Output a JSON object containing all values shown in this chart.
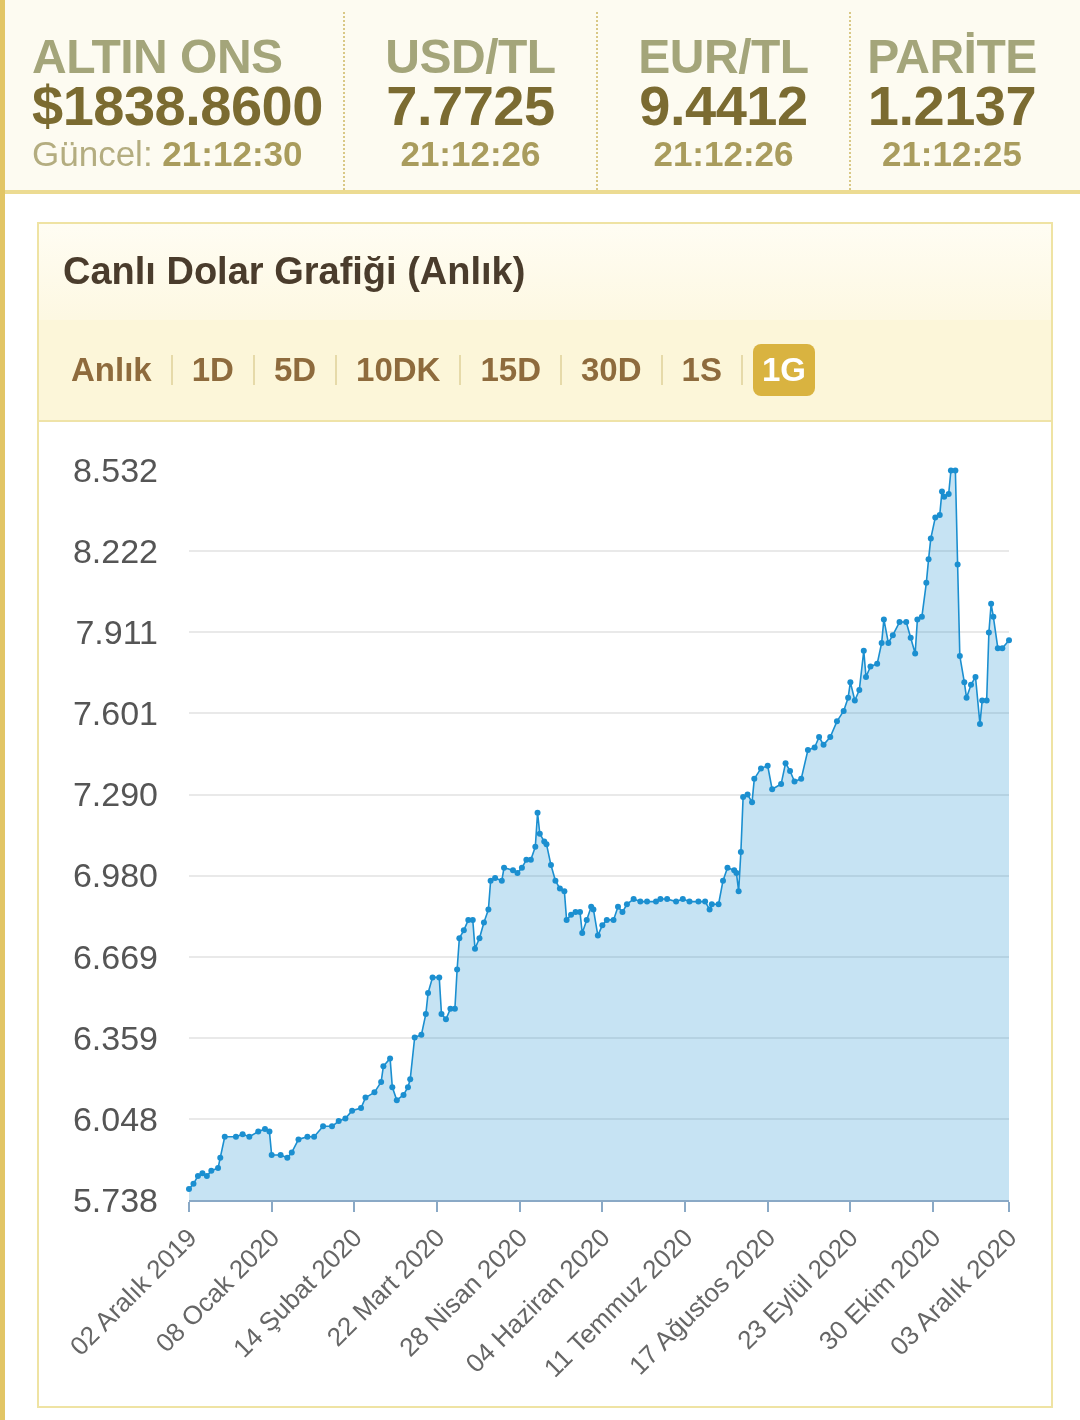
{
  "chart_data": [
    {
      "type": "other",
      "annotations": [
        "ALTIN ONS",
        "$1838.8600",
        "Güncel: 21:12:30",
        "USD/TL",
        "7.7725",
        "21:12:26",
        "EUR/TL",
        "9.4412",
        "21:12:26",
        "PARİTE",
        "1.2137",
        "21:12:25"
      ]
    },
    {
      "type": "area",
      "title": "Canlı Dolar Grafiği (Anlık)",
      "annotations": [
        "Anlık",
        "1D",
        "5D",
        "10DK",
        "15D",
        "30D",
        "1S",
        "1G"
      ],
      "x": [
        "2019-12-02",
        "2019-12-04",
        "2019-12-06",
        "2019-12-08",
        "2019-12-10",
        "2019-12-12",
        "2019-12-15",
        "2019-12-16",
        "2019-12-18",
        "2019-12-23",
        "2019-12-26",
        "2019-12-29",
        "2020-01-02",
        "2020-01-05",
        "2020-01-07",
        "2020-01-08",
        "2020-01-12",
        "2020-01-15",
        "2020-01-17",
        "2020-01-20",
        "2020-01-24",
        "2020-01-27",
        "2020-01-31",
        "2020-02-04",
        "2020-02-07",
        "2020-02-10",
        "2020-02-13",
        "2020-02-17",
        "2020-02-19",
        "2020-02-23",
        "2020-02-26",
        "2020-02-27",
        "2020-03-01",
        "2020-03-02",
        "2020-03-04",
        "2020-03-07",
        "2020-03-09",
        "2020-03-10",
        "2020-03-12",
        "2020-03-15",
        "2020-03-17",
        "2020-03-18",
        "2020-03-20",
        "2020-03-23",
        "2020-03-24",
        "2020-03-26",
        "2020-03-28",
        "2020-03-30",
        "2020-03-31",
        "2020-04-01",
        "2020-04-03",
        "2020-04-05",
        "2020-04-07",
        "2020-04-08",
        "2020-04-10",
        "2020-04-12",
        "2020-04-14",
        "2020-04-15",
        "2020-04-17",
        "2020-04-20",
        "2020-04-21",
        "2020-04-25",
        "2020-04-27",
        "2020-04-29",
        "2020-05-01",
        "2020-05-03",
        "2020-05-05",
        "2020-05-06",
        "2020-05-07",
        "2020-05-09",
        "2020-05-10",
        "2020-05-12",
        "2020-05-14",
        "2020-05-16",
        "2020-05-18",
        "2020-05-19",
        "2020-05-21",
        "2020-05-23",
        "2020-05-25",
        "2020-05-26",
        "2020-05-28",
        "2020-05-30",
        "2020-05-31",
        "2020-06-02",
        "2020-06-04",
        "2020-06-06",
        "2020-06-09",
        "2020-06-11",
        "2020-06-13",
        "2020-06-15",
        "2020-06-18",
        "2020-06-21",
        "2020-06-24",
        "2020-06-28",
        "2020-06-30",
        "2020-07-03",
        "2020-07-07",
        "2020-07-10",
        "2020-07-13",
        "2020-07-17",
        "2020-07-20",
        "2020-07-22",
        "2020-07-23",
        "2020-07-26",
        "2020-07-28",
        "2020-07-30",
        "2020-08-02",
        "2020-08-03",
        "2020-08-04",
        "2020-08-05",
        "2020-08-06",
        "2020-08-08",
        "2020-08-10",
        "2020-08-11",
        "2020-08-14",
        "2020-08-17",
        "2020-08-19",
        "2020-08-23",
        "2020-08-25",
        "2020-08-27",
        "2020-08-29",
        "2020-09-01",
        "2020-09-04",
        "2020-09-07",
        "2020-09-09",
        "2020-09-11",
        "2020-09-14",
        "2020-09-17",
        "2020-09-20",
        "2020-09-22",
        "2020-09-23",
        "2020-09-25",
        "2020-09-27",
        "2020-09-29",
        "2020-09-30",
        "2020-10-02",
        "2020-10-05",
        "2020-10-07",
        "2020-10-08",
        "2020-10-10",
        "2020-10-12",
        "2020-10-15",
        "2020-10-18",
        "2020-10-20",
        "2020-10-22",
        "2020-10-23",
        "2020-10-25",
        "2020-10-27",
        "2020-10-28",
        "2020-10-29",
        "2020-10-31",
        "2020-11-02",
        "2020-11-03",
        "2020-11-04",
        "2020-11-06",
        "2020-11-07",
        "2020-11-09",
        "2020-11-10",
        "2020-11-11",
        "2020-11-13",
        "2020-11-14",
        "2020-11-16",
        "2020-11-18",
        "2020-11-20",
        "2020-11-21",
        "2020-11-23",
        "2020-11-24",
        "2020-11-25",
        "2020-11-26",
        "2020-11-28",
        "2020-11-30",
        "2020-12-03"
      ],
      "series": [
        {
          "color": "#1b8fd0",
          "values": [
            5.78,
            5.8,
            5.83,
            5.84,
            5.83,
            5.85,
            5.86,
            5.9,
            5.98,
            5.98,
            5.99,
            5.98,
            6.0,
            6.01,
            6.0,
            5.91,
            5.91,
            5.9,
            5.92,
            5.97,
            5.98,
            5.98,
            6.02,
            6.02,
            6.04,
            6.05,
            6.08,
            6.09,
            6.13,
            6.15,
            6.19,
            6.25,
            6.28,
            6.17,
            6.12,
            6.14,
            6.17,
            6.2,
            6.36,
            6.37,
            6.45,
            6.53,
            6.59,
            6.59,
            6.45,
            6.43,
            6.47,
            6.47,
            6.62,
            6.74,
            6.77,
            6.81,
            6.81,
            6.7,
            6.74,
            6.8,
            6.85,
            6.96,
            6.97,
            6.96,
            7.01,
            7.0,
            6.99,
            7.01,
            7.04,
            7.04,
            7.09,
            7.22,
            7.14,
            7.11,
            7.1,
            7.02,
            6.96,
            6.93,
            6.92,
            6.81,
            6.83,
            6.84,
            6.84,
            6.76,
            6.81,
            6.86,
            6.85,
            6.75,
            6.79,
            6.81,
            6.81,
            6.86,
            6.84,
            6.87,
            6.89,
            6.88,
            6.88,
            6.88,
            6.89,
            6.89,
            6.88,
            6.89,
            6.88,
            6.88,
            6.88,
            6.85,
            6.87,
            6.87,
            6.96,
            7.01,
            7.0,
            6.99,
            6.92,
            7.07,
            7.28,
            7.29,
            7.26,
            7.35,
            7.39,
            7.4,
            7.31,
            7.33,
            7.41,
            7.38,
            7.34,
            7.35,
            7.46,
            7.47,
            7.51,
            7.48,
            7.51,
            7.57,
            7.61,
            7.66,
            7.72,
            7.65,
            7.69,
            7.84,
            7.74,
            7.78,
            7.79,
            7.87,
            7.96,
            7.87,
            7.9,
            7.95,
            7.95,
            7.89,
            7.83,
            7.96,
            7.97,
            8.1,
            8.19,
            8.27,
            8.35,
            8.36,
            8.45,
            8.43,
            8.44,
            8.53,
            8.53,
            8.17,
            7.82,
            7.72,
            7.66,
            7.71,
            7.74,
            7.56,
            7.65,
            7.65,
            7.91,
            8.02,
            7.97,
            7.85,
            7.85,
            7.88
          ]
        }
      ],
      "xlim": [
        "2019-12-02",
        "2020-12-03"
      ],
      "xticks": [
        {
          "value": "2019-12-02",
          "label": "02 Aralık 2019"
        },
        {
          "value": "2020-01-08",
          "label": "08 Ocak 2020"
        },
        {
          "value": "2020-02-14",
          "label": "14 Şubat 2020"
        },
        {
          "value": "2020-03-22",
          "label": "22 Mart 2020"
        },
        {
          "value": "2020-04-28",
          "label": "28 Nisan 2020"
        },
        {
          "value": "2020-06-04",
          "label": "04 Haziran 2020"
        },
        {
          "value": "2020-07-11",
          "label": "11 Temmuz 2020"
        },
        {
          "value": "2020-08-17",
          "label": "17 Ağustos 2020"
        },
        {
          "value": "2020-09-23",
          "label": "23 Eylül 2020"
        },
        {
          "value": "2020-10-30",
          "label": "30 Ekim 2020"
        },
        {
          "value": "2020-12-03",
          "label": "03 Aralık 2020"
        }
      ],
      "ylim": [
        5.738,
        8.532
      ],
      "yticks": [
        5.738,
        6.048,
        6.359,
        6.669,
        {
          "value": 6.98,
          "label": "6.980"
        },
        {
          "value": 7.29,
          "label": "7.290"
        },
        7.601,
        7.911,
        8.222,
        8.532
      ],
      "grid": "y",
      "marker": "circle"
    }
  ]
}
